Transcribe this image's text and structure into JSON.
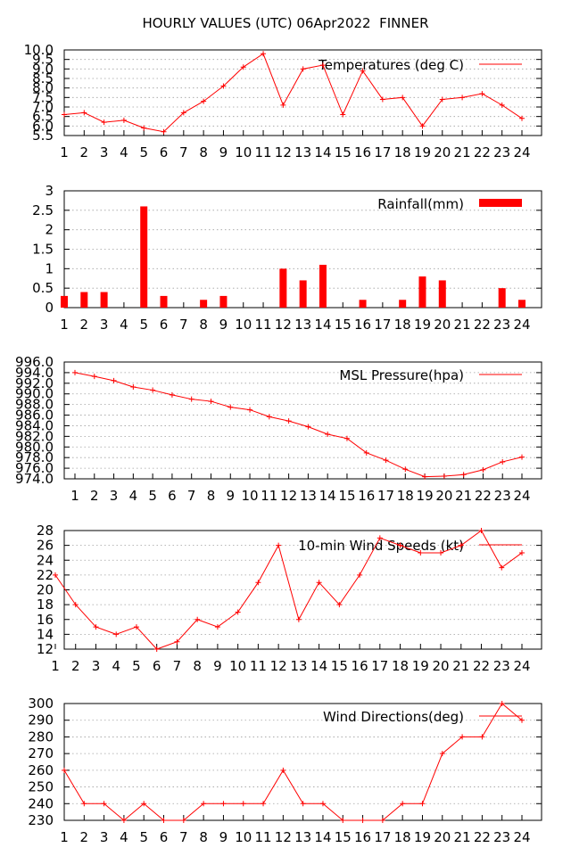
{
  "title": "HOURLY VALUES (UTC) 06Apr2022  FINNER",
  "colors": {
    "series": "#ff0000",
    "grid": "#a0a0a0",
    "axis": "#000000"
  },
  "chart_data": [
    {
      "type": "line",
      "legend": "Temperatures (deg C)",
      "x": [
        1,
        2,
        3,
        4,
        5,
        6,
        7,
        8,
        9,
        10,
        11,
        12,
        13,
        14,
        15,
        16,
        17,
        18,
        19,
        20,
        21,
        22,
        23,
        24
      ],
      "values": [
        6.6,
        6.7,
        6.2,
        6.3,
        5.9,
        5.7,
        6.7,
        7.3,
        8.1,
        9.1,
        9.8,
        7.1,
        9.0,
        9.2,
        6.6,
        8.9,
        7.4,
        7.5,
        6.0,
        7.4,
        7.5,
        7.7,
        7.1,
        6.4
      ],
      "ylim": [
        5.5,
        10.0
      ],
      "yticks": [
        "5.5",
        "6.0",
        "6.5",
        "7.0",
        "7.5",
        "8.0",
        "8.5",
        "9.0",
        "9.5",
        "10.0"
      ],
      "xticks": [
        "1",
        "2",
        "3",
        "4",
        "5",
        "6",
        "7",
        "8",
        "9",
        "10",
        "11",
        "12",
        "13",
        "14",
        "15",
        "16",
        "17",
        "18",
        "19",
        "20",
        "21",
        "22",
        "23",
        "24"
      ],
      "grid": true,
      "legend_position": "top-right"
    },
    {
      "type": "bar",
      "legend": "Rainfall(mm)",
      "x": [
        1,
        2,
        3,
        4,
        5,
        6,
        7,
        8,
        9,
        10,
        11,
        12,
        13,
        14,
        15,
        16,
        17,
        18,
        19,
        20,
        21,
        22,
        23,
        24
      ],
      "values": [
        0.3,
        0.4,
        0.4,
        0,
        2.6,
        0.3,
        0,
        0.2,
        0.3,
        0,
        0,
        1.0,
        0.7,
        1.1,
        0,
        0.2,
        0,
        0.2,
        0.8,
        0.7,
        0,
        0,
        0.5,
        0.2
      ],
      "ylim": [
        0,
        3
      ],
      "yticks": [
        "0",
        "0.5",
        "1",
        "1.5",
        "2",
        "2.5",
        "3"
      ],
      "xticks": [
        "1",
        "2",
        "3",
        "4",
        "5",
        "6",
        "7",
        "8",
        "9",
        "10",
        "11",
        "12",
        "13",
        "14",
        "15",
        "16",
        "17",
        "18",
        "19",
        "20",
        "21",
        "22",
        "23",
        "24"
      ],
      "grid": true,
      "legend_position": "top-right"
    },
    {
      "type": "line",
      "legend": "MSL Pressure(hpa)",
      "x": [
        1,
        2,
        3,
        4,
        5,
        6,
        7,
        8,
        9,
        10,
        11,
        12,
        13,
        14,
        15,
        16,
        17,
        18,
        19,
        20,
        21,
        22,
        23,
        24
      ],
      "values": [
        994.0,
        993.3,
        992.5,
        991.3,
        990.7,
        989.8,
        989.0,
        988.6,
        987.5,
        987.0,
        985.7,
        984.9,
        983.8,
        982.4,
        981.6,
        978.9,
        977.5,
        975.8,
        974.4,
        974.5,
        974.8,
        975.7,
        977.2,
        978.1
      ],
      "ylim": [
        974.0,
        996.0
      ],
      "yticks": [
        "974.0",
        "976.0",
        "978.0",
        "980.0",
        "982.0",
        "984.0",
        "986.0",
        "988.0",
        "990.0",
        "992.0",
        "994.0",
        "996.0"
      ],
      "xticks": [
        "1",
        "2",
        "3",
        "4",
        "5",
        "6",
        "7",
        "8",
        "9",
        "10",
        "11",
        "12",
        "13",
        "14",
        "15",
        "16",
        "17",
        "18",
        "19",
        "20",
        "21",
        "22",
        "23",
        "24"
      ],
      "grid": true,
      "legend_position": "top-right"
    },
    {
      "type": "line",
      "legend": "10-min Wind Speeds (kt)",
      "x": [
        1,
        2,
        3,
        4,
        5,
        6,
        7,
        8,
        9,
        10,
        11,
        12,
        13,
        14,
        15,
        16,
        17,
        18,
        19,
        20,
        21,
        22,
        23,
        24
      ],
      "values": [
        22,
        18,
        15,
        14,
        15,
        12,
        13,
        16,
        15,
        17,
        21,
        26,
        16,
        21,
        18,
        22,
        27,
        26,
        25,
        25,
        26,
        28,
        23,
        25
      ],
      "ylim": [
        12,
        28
      ],
      "yticks": [
        "12",
        "14",
        "16",
        "18",
        "20",
        "22",
        "24",
        "26",
        "28"
      ],
      "xticks": [
        "1",
        "2",
        "3",
        "4",
        "5",
        "6",
        "7",
        "8",
        "9",
        "10",
        "11",
        "12",
        "13",
        "14",
        "15",
        "16",
        "17",
        "18",
        "19",
        "20",
        "21",
        "22",
        "23",
        "24"
      ],
      "grid": true,
      "legend_position": "top-right"
    },
    {
      "type": "line",
      "legend": "Wind Directions(deg)",
      "x": [
        1,
        2,
        3,
        4,
        5,
        6,
        7,
        8,
        9,
        10,
        11,
        12,
        13,
        14,
        15,
        16,
        17,
        18,
        19,
        20,
        21,
        22,
        23,
        24
      ],
      "values": [
        260,
        240,
        240,
        230,
        240,
        230,
        230,
        240,
        240,
        240,
        240,
        260,
        240,
        240,
        230,
        230,
        230,
        240,
        240,
        270,
        280,
        280,
        300,
        290
      ],
      "ylim": [
        230,
        300
      ],
      "yticks": [
        "230",
        "240",
        "250",
        "260",
        "270",
        "280",
        "290",
        "300"
      ],
      "xticks": [
        "1",
        "2",
        "3",
        "4",
        "5",
        "6",
        "7",
        "8",
        "9",
        "10",
        "11",
        "12",
        "13",
        "14",
        "15",
        "16",
        "17",
        "18",
        "19",
        "20",
        "21",
        "22",
        "23",
        "24"
      ],
      "grid": true,
      "legend_position": "top-right"
    }
  ]
}
